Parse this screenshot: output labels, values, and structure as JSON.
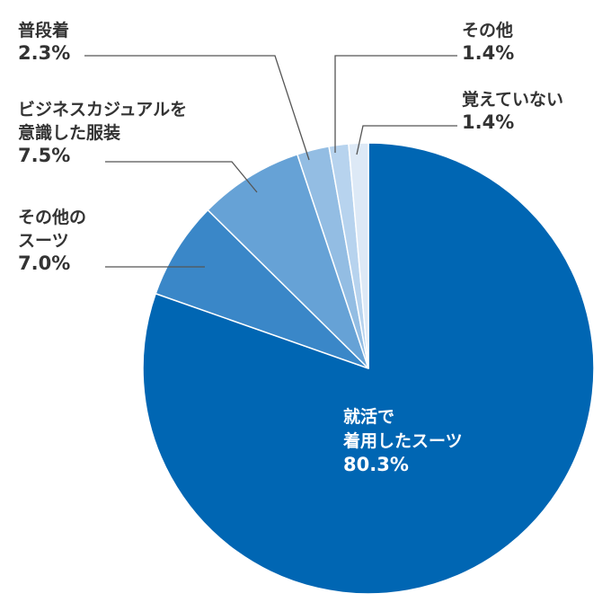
{
  "chart_data": {
    "type": "pie",
    "title": "",
    "slices": [
      {
        "label": [
          "就活で",
          "着用したスーツ"
        ],
        "value": 80.3,
        "value_label": "80.3%",
        "color": "#0066b3"
      },
      {
        "label": [
          "その他の",
          "スーツ"
        ],
        "value": 7.0,
        "value_label": "7.0%",
        "color": "#3a87c8"
      },
      {
        "label": [
          "ビジネスカジュアルを",
          "意識した服装"
        ],
        "value": 7.5,
        "value_label": "7.5%",
        "color": "#66a2d6"
      },
      {
        "label": [
          "普段着"
        ],
        "value": 2.3,
        "value_label": "2.3%",
        "color": "#93bde3"
      },
      {
        "label": [
          "その他"
        ],
        "value": 1.4,
        "value_label": "1.4%",
        "color": "#b7d3ee"
      },
      {
        "label": [
          "覚えていない"
        ],
        "value": 1.4,
        "value_label": "1.4%",
        "color": "#dde9f6"
      }
    ],
    "start": "12 o'clock",
    "direction": "clockwise"
  }
}
